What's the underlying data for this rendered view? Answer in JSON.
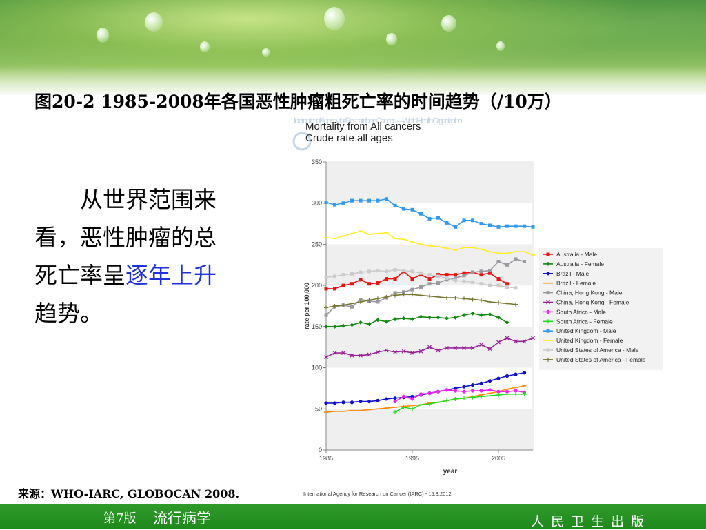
{
  "slide": {
    "title": "图20-2 1985-2008年各国恶性肿瘤粗死亡率的时间趋势（/10万）",
    "body_prefix": "从世界范围来看，恶性肿瘤的总死亡率呈",
    "body_highlight": "逐年上升",
    "body_suffix": "趋势。",
    "source": "来源：WHO-IARC, GLOBOCAN 2008.",
    "footer_edition": "第7版",
    "footer_course": "流行病学",
    "footer_publisher": "人民卫生出版"
  },
  "chart_data": {
    "type": "line",
    "title": "Mortality from All cancers",
    "subtitle": "Crude rate all ages",
    "watermark": "International Agency for Research on Cancer — World Health Organization",
    "xlabel": "year",
    "ylabel": "rate per 100,000",
    "xlim": [
      1985,
      2009
    ],
    "ylim": [
      0,
      350
    ],
    "xticks": [
      1985,
      1995,
      2005
    ],
    "yticks": [
      0,
      50,
      100,
      150,
      200,
      250,
      300,
      350
    ],
    "grid": "horizontal bands",
    "legend_position": "right",
    "credit": "International Agency for Research on Cancer (IARC) - 15.3.2012",
    "series": [
      {
        "name": "Australia - Male",
        "color": "#ee1111",
        "marker": "square",
        "x": [
          1985,
          1986,
          1987,
          1988,
          1989,
          1990,
          1991,
          1992,
          1993,
          1994,
          1995,
          1996,
          1997,
          1998,
          1999,
          2000,
          2001,
          2002,
          2003,
          2004,
          2005,
          2006
        ],
        "y": [
          196,
          196,
          200,
          202,
          207,
          202,
          203,
          208,
          208,
          217,
          208,
          213,
          208,
          213,
          213,
          213,
          215,
          216,
          213,
          215,
          208,
          202
        ]
      },
      {
        "name": "Australia - Female",
        "color": "#118811",
        "marker": "diamond",
        "x": [
          1985,
          1986,
          1987,
          1988,
          1989,
          1990,
          1991,
          1992,
          1993,
          1994,
          1995,
          1996,
          1997,
          1998,
          1999,
          2000,
          2001,
          2002,
          2003,
          2004,
          2005,
          2006
        ],
        "y": [
          150,
          150,
          151,
          152,
          155,
          153,
          158,
          156,
          159,
          160,
          159,
          162,
          161,
          161,
          160,
          161,
          164,
          166,
          164,
          165,
          161,
          155
        ]
      },
      {
        "name": "Brazil - Male",
        "color": "#1111cc",
        "marker": "circle",
        "x": [
          1985,
          1986,
          1987,
          1988,
          1989,
          1990,
          1991,
          1992,
          1993,
          1994,
          1995,
          1996,
          1997,
          1998,
          1999,
          2000,
          2001,
          2002,
          2003,
          2004,
          2005,
          2006,
          2007,
          2008
        ],
        "y": [
          57,
          57,
          58,
          58,
          59,
          59,
          60,
          62,
          63,
          64,
          65,
          67,
          69,
          71,
          73,
          75,
          77,
          79,
          81,
          84,
          87,
          90,
          92,
          94
        ]
      },
      {
        "name": "Brazil - Female",
        "color": "#ff8800",
        "marker": "dash",
        "x": [
          1985,
          1986,
          1987,
          1988,
          1989,
          1990,
          1991,
          1992,
          1993,
          1994,
          1995,
          1996,
          1997,
          1998,
          1999,
          2000,
          2001,
          2002,
          2003,
          2004,
          2005,
          2006,
          2007,
          2008
        ],
        "y": [
          46,
          47,
          47,
          48,
          48,
          49,
          50,
          51,
          52,
          53,
          54,
          55,
          57,
          58,
          60,
          62,
          63,
          65,
          67,
          69,
          71,
          74,
          76,
          78
        ]
      },
      {
        "name": "China, Hong Kong - Male",
        "color": "#9a9aa0",
        "marker": "square",
        "x": [
          1985,
          1986,
          1987,
          1988,
          1989,
          1990,
          1991,
          1992,
          1993,
          1994,
          1995,
          1996,
          1997,
          1998,
          1999,
          2000,
          2001,
          2002,
          2003,
          2004,
          2005,
          2006,
          2007,
          2008
        ],
        "y": [
          164,
          174,
          176,
          174,
          183,
          181,
          180,
          185,
          191,
          192,
          195,
          198,
          202,
          203,
          207,
          209,
          212,
          216,
          217,
          218,
          229,
          225,
          232,
          229
        ]
      },
      {
        "name": "China, Hong Kong - Female",
        "color": "#992299",
        "marker": "x",
        "x": [
          1985,
          1986,
          1987,
          1988,
          1989,
          1990,
          1991,
          1992,
          1993,
          1994,
          1995,
          1996,
          1997,
          1998,
          1999,
          2000,
          2001,
          2002,
          2003,
          2004,
          2005,
          2006,
          2007,
          2008,
          2009
        ],
        "y": [
          113,
          118,
          118,
          115,
          115,
          116,
          119,
          121,
          119,
          120,
          118,
          120,
          125,
          121,
          124,
          124,
          124,
          124,
          128,
          123,
          131,
          136,
          132,
          132,
          136
        ]
      },
      {
        "name": "South Africa - Male",
        "color": "#ee22ee",
        "marker": "circle",
        "x": [
          1993,
          1994,
          1995,
          1996,
          1997,
          1998,
          1999,
          2000,
          2001,
          2002,
          2003,
          2004,
          2005,
          2006,
          2007,
          2008
        ],
        "y": [
          59,
          65,
          62,
          68,
          69,
          71,
          73,
          72,
          71,
          72,
          72,
          73,
          71,
          71,
          72,
          70
        ]
      },
      {
        "name": "South Africa - Female",
        "color": "#22dd22",
        "marker": "plus",
        "x": [
          1993,
          1994,
          1995,
          1996,
          1997,
          1998,
          1999,
          2000,
          2001,
          2002,
          2003,
          2004,
          2005,
          2006,
          2007,
          2008
        ],
        "y": [
          46,
          52,
          50,
          55,
          56,
          58,
          60,
          62,
          63,
          64,
          65,
          66,
          67,
          68,
          68,
          68
        ]
      },
      {
        "name": "United Kingdom - Male",
        "color": "#3399ee",
        "marker": "square",
        "x": [
          1985,
          1986,
          1987,
          1988,
          1989,
          1990,
          1991,
          1992,
          1993,
          1994,
          1995,
          1996,
          1997,
          1998,
          1999,
          2000,
          2001,
          2002,
          2003,
          2004,
          2005,
          2006,
          2007,
          2008,
          2009
        ],
        "y": [
          301,
          298,
          300,
          303,
          303,
          303,
          303,
          305,
          297,
          293,
          292,
          287,
          281,
          282,
          276,
          271,
          279,
          279,
          275,
          273,
          271,
          272,
          272,
          272,
          271
        ]
      },
      {
        "name": "United Kingdom - Female",
        "color": "#ffee22",
        "marker": "dash",
        "x": [
          1985,
          1986,
          1987,
          1988,
          1989,
          1990,
          1991,
          1992,
          1993,
          1994,
          1995,
          1996,
          1997,
          1998,
          1999,
          2000,
          2001,
          2002,
          2003,
          2004,
          2005,
          2006,
          2007,
          2008,
          2009
        ],
        "y": [
          258,
          257,
          260,
          263,
          266,
          262,
          263,
          264,
          257,
          256,
          253,
          250,
          248,
          247,
          245,
          243,
          246,
          246,
          244,
          241,
          239,
          239,
          241,
          241,
          237
        ]
      },
      {
        "name": "United States of America - Male",
        "color": "#cccccc",
        "marker": "square",
        "x": [
          1985,
          1986,
          1987,
          1988,
          1989,
          1990,
          1991,
          1992,
          1993,
          1994,
          1995,
          1996,
          1997,
          1998,
          1999,
          2000,
          2001,
          2002,
          2003,
          2004,
          2005,
          2006,
          2007
        ],
        "y": [
          210,
          211,
          213,
          214,
          216,
          217,
          218,
          217,
          219,
          218,
          217,
          215,
          213,
          211,
          209,
          206,
          205,
          204,
          202,
          200,
          200,
          198,
          197
        ]
      },
      {
        "name": "United States of America - Female",
        "color": "#777733",
        "marker": "plus",
        "x": [
          1985,
          1986,
          1987,
          1988,
          1989,
          1990,
          1991,
          1992,
          1993,
          1994,
          1995,
          1996,
          1997,
          1998,
          1999,
          2000,
          2001,
          2002,
          2003,
          2004,
          2005,
          2006,
          2007
        ],
        "y": [
          173,
          175,
          176,
          178,
          180,
          182,
          184,
          186,
          188,
          189,
          189,
          188,
          187,
          186,
          185,
          185,
          184,
          183,
          182,
          180,
          179,
          178,
          177
        ]
      }
    ]
  }
}
